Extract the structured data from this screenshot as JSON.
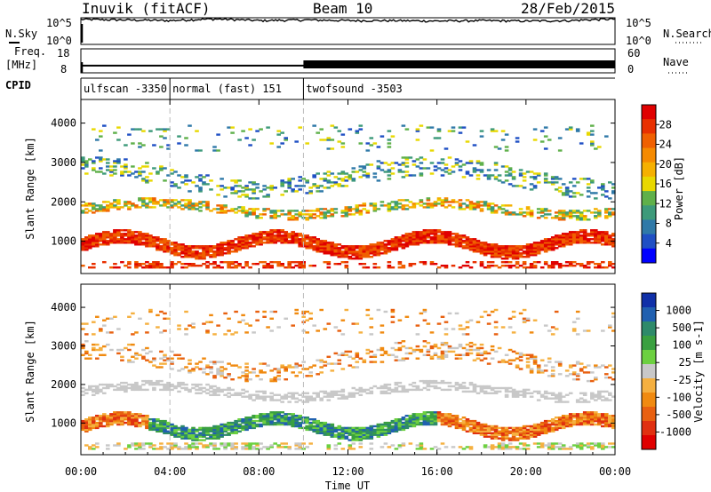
{
  "header": {
    "station": "Inuvik (fitACF)",
    "beam": "Beam 10",
    "date": "28/Feb/2015"
  },
  "noise_panel": {
    "left_label": "N.Sky",
    "right_label": "N.Search",
    "left_ticks": [
      "10^5",
      "10^0"
    ],
    "right_ticks": [
      "10^5",
      "10^0"
    ]
  },
  "freq_panel": {
    "left_label_line1": "Freq.",
    "left_label_line2": "[MHz]",
    "left_ticks": [
      "18",
      "8"
    ],
    "right_label": "Nave",
    "right_ticks": [
      "60",
      "0"
    ]
  },
  "cpid": {
    "label": "CPID",
    "segments": [
      {
        "name": "ulfscan -3350",
        "start_hour": 0,
        "end_hour": 4
      },
      {
        "name": "normal (fast) 151",
        "start_hour": 4,
        "end_hour": 10
      },
      {
        "name": "twofsound -3503",
        "start_hour": 10,
        "end_hour": 24
      }
    ]
  },
  "x_axis": {
    "label": "Time UT",
    "ticks": [
      "00:00",
      "04:00",
      "08:00",
      "12:00",
      "16:00",
      "20:00",
      "00:00"
    ],
    "range_hours": [
      0,
      24
    ]
  },
  "power_panel": {
    "ylabel": "Slant Range [km]",
    "yticks": [
      "1000",
      "2000",
      "3000",
      "4000"
    ],
    "colorbar_label": "Power [dB]",
    "colorbar_ticks": [
      "4",
      "8",
      "12",
      "16",
      "20",
      "24",
      "28"
    ]
  },
  "velocity_panel": {
    "ylabel": "Slant Range [km]",
    "yticks": [
      "1000",
      "2000",
      "3000",
      "4000"
    ],
    "colorbar_label": "Velocity [m s-1]",
    "colorbar_ticks": [
      "1000",
      "500",
      "100",
      "25",
      "-25",
      "-100",
      "-500",
      "-1000"
    ]
  },
  "colors": {
    "power_scale": [
      "#0000ff",
      "#1f4fc4",
      "#2f79a8",
      "#3d9a7a",
      "#5fb04a",
      "#e8d800",
      "#f5b000",
      "#f58a00",
      "#f06000",
      "#e83000",
      "#e00000"
    ],
    "velocity_scale": [
      "#1030a8",
      "#2060b0",
      "#2e8a6a",
      "#3aa040",
      "#6cd040",
      "#c8c8c8",
      "#f5b040",
      "#f08a10",
      "#e86010",
      "#e03010",
      "#e00000"
    ]
  },
  "chart_data": [
    {
      "type": "line",
      "title": "",
      "series": [
        {
          "name": "N.Sky",
          "x": [
            0,
            2,
            4,
            6,
            8,
            10,
            12,
            14,
            16,
            18,
            20,
            22,
            24
          ],
          "y": [
            50000,
            40000,
            30000,
            60000,
            30000,
            40000,
            30000,
            30000,
            25000,
            30000,
            25000,
            30000,
            60000
          ]
        }
      ],
      "ylim": [
        1,
        100000
      ],
      "yscale": "log"
    },
    {
      "type": "line",
      "title": "",
      "series": [
        {
          "name": "Freq.",
          "x": [
            0,
            4,
            10,
            24
          ],
          "y": [
            11,
            11,
            11,
            11
          ]
        }
      ],
      "ylim": [
        8,
        18
      ]
    },
    {
      "type": "heatmap",
      "title": "",
      "xlabel": "Time UT",
      "ylabel": "Slant Range [km]",
      "xlim": [
        0,
        24
      ],
      "ylim": [
        180,
        4600
      ],
      "colorbar_label": "Power [dB]",
      "clim": [
        0,
        30
      ]
    },
    {
      "type": "heatmap",
      "title": "",
      "xlabel": "Time UT",
      "ylabel": "Slant Range [km]",
      "xlim": [
        0,
        24
      ],
      "ylim": [
        180,
        4600
      ],
      "colorbar_label": "Velocity [m s-1]",
      "clim": [
        -1000,
        1000
      ]
    }
  ]
}
